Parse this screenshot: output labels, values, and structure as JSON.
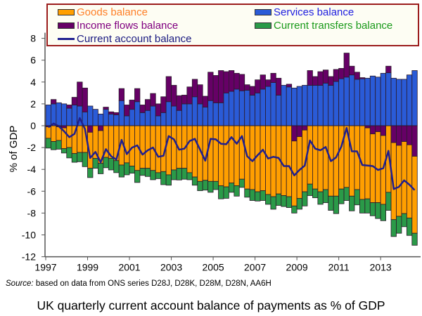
{
  "chart_data": {
    "type": "bar",
    "stacked": true,
    "title": "UK quarterly current account balance of payments as % of GDP",
    "source_label": "Source:",
    "source_text": "based on data from ONS series D28J, D28K, D28M, D28N, AA6H",
    "ylabel": "% of GDP",
    "xlabel": "",
    "ylim": [
      -12,
      8
    ],
    "yticks": [
      -12,
      -10,
      -8,
      -6,
      -4,
      -2,
      0,
      2,
      4,
      6,
      8
    ],
    "xticks": [
      "1997",
      "1999",
      "2001",
      "2003",
      "2005",
      "2007",
      "2009",
      "2011",
      "2013"
    ],
    "x_start": "1997 Q1",
    "x_end": "2014 Q3",
    "frequency": "quarterly",
    "legend_position": "top",
    "series": [
      {
        "name": "Goods balance",
        "kind": "bar",
        "color": "#ff9f00",
        "text_color": "#ff7f27",
        "values": [
          -1.05,
          -1.45,
          -1.25,
          -1.9,
          -2.0,
          -2.55,
          -2.45,
          -2.45,
          -3.3,
          -3.0,
          -3.0,
          -2.9,
          -3.0,
          -3.2,
          -3.6,
          -3.4,
          -3.7,
          -4.1,
          -3.9,
          -3.9,
          -4.1,
          -4.3,
          -4.2,
          -4.5,
          -4.05,
          -3.9,
          -3.9,
          -4.3,
          -4.7,
          -5.1,
          -5.0,
          -5.1,
          -5.1,
          -5.5,
          -5.6,
          -5.25,
          -5.5,
          -4.9,
          -5.8,
          -5.85,
          -6.05,
          -5.95,
          -6.3,
          -6.5,
          -6.25,
          -6.4,
          -6.5,
          -5.95,
          -5.65,
          -5.65,
          -5.35,
          -5.8,
          -6.05,
          -5.85,
          -6.45,
          -6.45,
          -5.8,
          -5.65,
          -6.45,
          -5.85,
          -6.75,
          -6.5,
          -6.3,
          -6.5,
          -6.3,
          -6.1,
          -7.05,
          -6.5,
          -6.6,
          -6.7,
          -7.05
        ]
      },
      {
        "name": "Services balance",
        "kind": "bar",
        "color": "#2a5bd7",
        "text_color": "#2020e0",
        "values": [
          1.9,
          2.0,
          2.1,
          2.0,
          1.6,
          1.9,
          1.8,
          1.25,
          1.8,
          1.5,
          1.07,
          1.5,
          1.07,
          1.0,
          2.3,
          0.9,
          1.5,
          2.2,
          1.2,
          1.4,
          1.8,
          0.9,
          1.2,
          2.2,
          1.8,
          1.4,
          2.0,
          2.0,
          2.65,
          2.0,
          1.7,
          2.3,
          2.1,
          2.1,
          3.0,
          3.15,
          3.35,
          3.2,
          3.25,
          2.8,
          3.0,
          3.35,
          3.6,
          3.95,
          2.8,
          3.7,
          3.55,
          3.45,
          3.6,
          3.7,
          3.7,
          3.7,
          3.7,
          3.9,
          3.7,
          4.05,
          4.3,
          4.45,
          4.65,
          4.25,
          4.3,
          4.35,
          4.55,
          4.45,
          4.8,
          4.85,
          4.35,
          4.25,
          4.25,
          4.65,
          5.05
        ]
      },
      {
        "name": "Income flows balance",
        "kind": "bar",
        "color": "#660066",
        "text_color": "#800080",
        "values": [
          -0.1,
          0.4,
          -0.1,
          -0.2,
          0.3,
          0.7,
          2.2,
          2.2,
          -0.6,
          0,
          -0.45,
          0.2,
          0.2,
          0.2,
          1.1,
          1.0,
          0.85,
          1.2,
          0.7,
          1.0,
          1.15,
          1.1,
          1.45,
          2.3,
          1.9,
          1.35,
          0.8,
          1.55,
          1.6,
          1.75,
          1.0,
          2.6,
          2.5,
          2.95,
          1.95,
          1.9,
          1.45,
          1.5,
          0.5,
          0.8,
          1.2,
          1.3,
          0.6,
          0.85,
          1.55,
          0,
          0.25,
          -1.4,
          -1.0,
          -0.4,
          1.35,
          0.8,
          1.25,
          1.2,
          0.8,
          1.1,
          0.95,
          2.2,
          0.8,
          0.65,
          0.1,
          -0.2,
          -0.75,
          -0.55,
          -0.9,
          0.6,
          -1.55,
          -1.8,
          -1.45,
          -1.75,
          -2.8
        ]
      },
      {
        "name": "Current transfers balance",
        "kind": "bar",
        "color": "#2a9a48",
        "text_color": "#1a9a1a",
        "values": [
          -0.9,
          -0.75,
          -0.8,
          -0.4,
          -0.95,
          -0.8,
          -0.85,
          -1.3,
          -0.85,
          -0.9,
          -0.95,
          -0.95,
          -1.05,
          -1.1,
          -1.1,
          -1.1,
          -0.65,
          -1.1,
          -0.65,
          -0.75,
          -0.85,
          -0.55,
          -1.2,
          -0.95,
          -0.9,
          -1.07,
          -1.0,
          -0.65,
          -0.75,
          -0.85,
          -0.9,
          -1.0,
          -0.75,
          -1.2,
          -1.05,
          -0.85,
          -0.95,
          -0.75,
          -0.75,
          -1.0,
          -0.85,
          -0.9,
          -0.9,
          -1.15,
          -1.05,
          -1.0,
          -1.0,
          -0.65,
          -1.0,
          -1.3,
          -1.05,
          -0.8,
          -1.15,
          -1.2,
          -1.3,
          -1.6,
          -1.35,
          -1.2,
          -1.35,
          -1.4,
          -1.25,
          -1.3,
          -1.2,
          -1.45,
          -1.5,
          -1.65,
          -1.55,
          -1.55,
          -1.2,
          -1.6,
          -1.1
        ]
      },
      {
        "name": "Current account balance",
        "kind": "line",
        "color": "#1f1f8f",
        "text_color": "#1a1a80",
        "values": [
          -0.15,
          0.2,
          -0.05,
          -0.5,
          -1.05,
          -0.75,
          0.7,
          -0.3,
          -2.95,
          -2.4,
          -3.35,
          -2.15,
          -2.8,
          -3.1,
          -1.3,
          -2.6,
          -2.0,
          -1.8,
          -2.65,
          -2.25,
          -2.0,
          -2.85,
          -2.75,
          -0.95,
          -1.25,
          -2.2,
          -2.1,
          -1.4,
          -1.2,
          -2.2,
          -3.2,
          -1.2,
          -1.25,
          -1.65,
          -1.7,
          -1.05,
          -1.65,
          -0.95,
          -2.8,
          -3.25,
          -2.7,
          -2.2,
          -3.0,
          -2.85,
          -2.95,
          -3.7,
          -3.7,
          -4.55,
          -4.05,
          -3.65,
          -1.35,
          -2.1,
          -2.25,
          -1.95,
          -3.25,
          -2.9,
          -1.9,
          -0.2,
          -2.35,
          -2.35,
          -3.6,
          -3.65,
          -3.7,
          -4.05,
          -3.9,
          -2.3,
          -5.8,
          -5.6,
          -5.0,
          -5.4,
          -5.9
        ]
      }
    ]
  }
}
